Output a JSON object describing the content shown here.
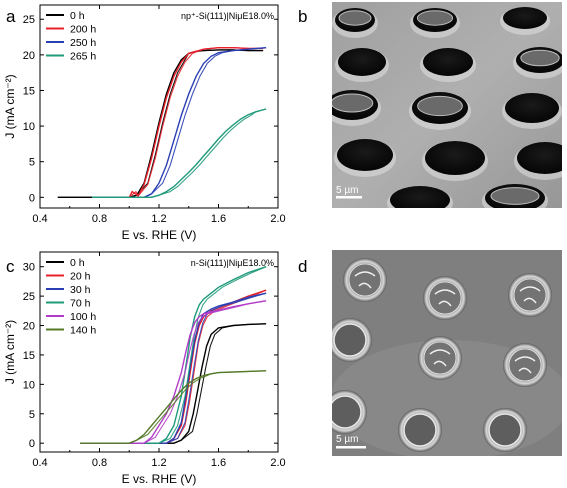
{
  "panels": {
    "a": "a",
    "b": "b",
    "c": "c",
    "d": "d"
  },
  "images": {
    "b": {
      "scale_bar": "5 µm"
    },
    "d": {
      "scale_bar": "5 µm"
    }
  },
  "chart_data": [
    {
      "panel": "a",
      "type": "line",
      "title": "",
      "annotation": "np⁺-Si(111)|NiμE18.0%",
      "xlabel": "E vs. RHE (V)",
      "ylabel": "J (mA cm⁻²)",
      "xlim": [
        0.4,
        2.0
      ],
      "ylim": [
        -1.5,
        27
      ],
      "xticks": [
        "0.4",
        "0.8",
        "1.2",
        "1.6",
        "2.0"
      ],
      "yticks": [
        "0",
        "5",
        "10",
        "15",
        "20",
        "25"
      ],
      "legend_position": "top-left",
      "series": [
        {
          "name": "0 h",
          "color": "#000000",
          "x": [
            0.52,
            1.0,
            1.05,
            1.1,
            1.15,
            1.2,
            1.25,
            1.3,
            1.35,
            1.4,
            1.45,
            1.5,
            1.6,
            1.7,
            1.8,
            1.9
          ],
          "y": [
            0,
            0,
            0.3,
            2,
            6,
            10.5,
            14.5,
            17.5,
            19.3,
            20.2,
            20.5,
            20.6,
            20.7,
            20.7,
            20.6,
            20.6
          ]
        },
        {
          "name": "200 h",
          "color": "#e8202a",
          "x": [
            0.75,
            1.0,
            1.02,
            1.06,
            1.1,
            1.15,
            1.2,
            1.25,
            1.3,
            1.35,
            1.4,
            1.5,
            1.6,
            1.7,
            1.8,
            1.9
          ],
          "y": [
            0,
            0,
            0.8,
            0.2,
            1.8,
            5.5,
            10,
            14,
            17,
            19,
            20.2,
            20.8,
            21,
            21,
            20.9,
            20.9
          ]
        },
        {
          "name": "250 h",
          "color": "#2b3fb4",
          "x": [
            0.75,
            1.1,
            1.15,
            1.2,
            1.25,
            1.3,
            1.35,
            1.4,
            1.45,
            1.5,
            1.55,
            1.6,
            1.7,
            1.8,
            1.92
          ],
          "y": [
            0,
            0,
            0.5,
            2,
            4.5,
            8,
            11.5,
            14.5,
            17,
            18.8,
            19.8,
            20.3,
            20.6,
            20.8,
            21
          ]
        },
        {
          "name": "265 h",
          "color": "#1f9a7a",
          "x": [
            0.75,
            1.15,
            1.2,
            1.25,
            1.3,
            1.35,
            1.4,
            1.45,
            1.5,
            1.55,
            1.6,
            1.65,
            1.7,
            1.75,
            1.8,
            1.85,
            1.92
          ],
          "y": [
            0,
            0,
            0.3,
            0.8,
            1.5,
            2.5,
            3.5,
            4.6,
            5.8,
            7,
            8.2,
            9.3,
            10.2,
            11,
            11.6,
            12,
            12.4
          ]
        }
      ]
    },
    {
      "panel": "c",
      "type": "line",
      "title": "",
      "annotation": "n-Si(111)|NiμE18.0%",
      "xlabel": "E vs. RHE (V)",
      "ylabel": "J (mA cm⁻²)",
      "xlim": [
        0.4,
        2.0
      ],
      "ylim": [
        -1.5,
        32.5
      ],
      "xticks": [
        "0.4",
        "0.8",
        "1.2",
        "1.6",
        "2.0"
      ],
      "yticks": [
        "0",
        "5",
        "10",
        "15",
        "20",
        "25",
        "30"
      ],
      "legend_position": "top-left",
      "series": [
        {
          "name": "0 h",
          "color": "#000000",
          "x": [
            0.67,
            1.3,
            1.35,
            1.4,
            1.43,
            1.46,
            1.49,
            1.52,
            1.55,
            1.6,
            1.7,
            1.8,
            1.92
          ],
          "y": [
            0,
            0,
            0.5,
            2,
            5,
            9,
            13,
            16.5,
            18.5,
            19.6,
            20,
            20.2,
            20.3
          ]
        },
        {
          "name": "20 h",
          "color": "#e8202a",
          "x": [
            0.67,
            1.25,
            1.3,
            1.35,
            1.38,
            1.41,
            1.44,
            1.47,
            1.5,
            1.55,
            1.6,
            1.7,
            1.8,
            1.92
          ],
          "y": [
            0,
            0,
            0.8,
            3,
            7,
            12,
            17,
            20,
            21.5,
            22.5,
            23,
            24,
            25,
            26
          ]
        },
        {
          "name": "30 h",
          "color": "#2b3fb4",
          "x": [
            0.67,
            1.25,
            1.3,
            1.35,
            1.38,
            1.41,
            1.44,
            1.47,
            1.5,
            1.55,
            1.6,
            1.7,
            1.8,
            1.92
          ],
          "y": [
            0,
            0,
            0.8,
            3.5,
            8,
            13,
            17.5,
            20.5,
            22,
            22.8,
            23.3,
            24,
            24.8,
            25.5
          ]
        },
        {
          "name": "70 h",
          "color": "#1f9a7a",
          "x": [
            0.67,
            1.2,
            1.25,
            1.3,
            1.35,
            1.38,
            1.41,
            1.44,
            1.47,
            1.5,
            1.55,
            1.6,
            1.7,
            1.8,
            1.92
          ],
          "y": [
            0,
            0,
            0.8,
            3,
            8,
            13,
            18,
            21.5,
            23.5,
            24.5,
            25.5,
            26.5,
            27.8,
            29,
            30
          ]
        },
        {
          "name": "100 h",
          "color": "#b23cc9",
          "x": [
            0.67,
            1.1,
            1.15,
            1.2,
            1.25,
            1.3,
            1.35,
            1.38,
            1.41,
            1.44,
            1.47,
            1.5,
            1.6,
            1.7,
            1.8,
            1.92
          ],
          "y": [
            0,
            0,
            1,
            3,
            5,
            8,
            12,
            15.5,
            18.5,
            20.5,
            21.5,
            22,
            22.6,
            23.2,
            23.7,
            24.2
          ]
        },
        {
          "name": "140 h",
          "color": "#557a2a",
          "x": [
            0.67,
            1.0,
            1.05,
            1.1,
            1.15,
            1.2,
            1.25,
            1.3,
            1.35,
            1.4,
            1.45,
            1.5,
            1.55,
            1.6,
            1.7,
            1.8,
            1.92
          ],
          "y": [
            0,
            0,
            0.5,
            1.5,
            3,
            4.5,
            6,
            7.5,
            9,
            10.2,
            11,
            11.5,
            11.8,
            12,
            12.1,
            12.2,
            12.3
          ]
        }
      ]
    }
  ]
}
